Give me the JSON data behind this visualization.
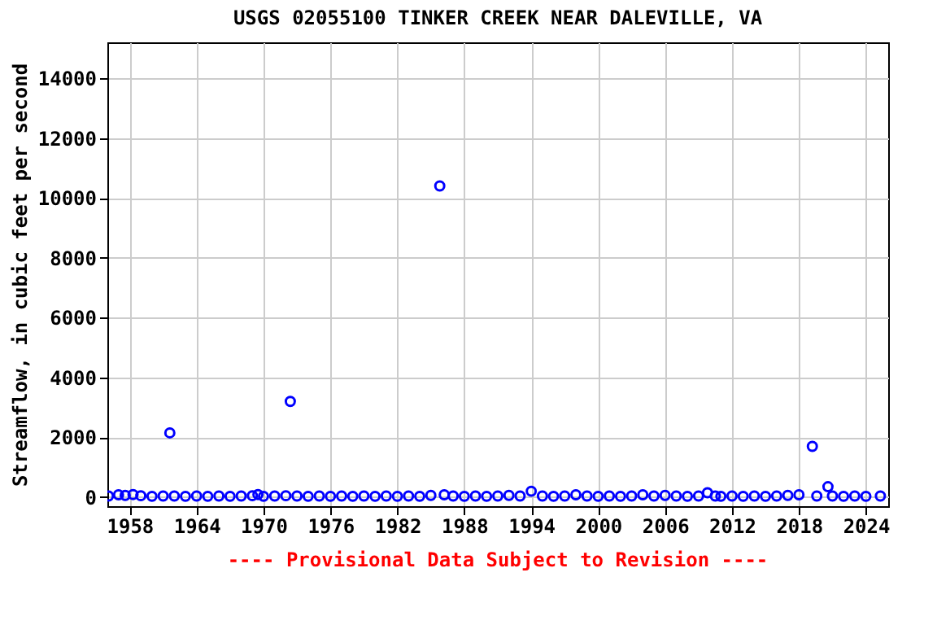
{
  "chart_data": {
    "type": "scatter",
    "title": "USGS 02055100 TINKER CREEK NEAR DALEVILLE, VA",
    "ylabel": "Streamflow, in cubic feet per second",
    "x": [
      1956.1,
      1957,
      1957.6,
      1958.3,
      1959,
      1960,
      1961,
      1961.6,
      1962,
      1963,
      1964,
      1965,
      1966,
      1967,
      1968,
      1969,
      1969.5,
      1970,
      1971,
      1972,
      1972.4,
      1973,
      1974,
      1975,
      1976,
      1977,
      1978,
      1979,
      1980,
      1981,
      1982,
      1983,
      1984,
      1985,
      1985.8,
      1986.2,
      1987,
      1988,
      1989,
      1990,
      1991,
      1992,
      1993,
      1994,
      1995,
      1996,
      1997,
      1998,
      1999,
      2000,
      2001,
      2002,
      2003,
      2004,
      2005,
      2006,
      2007,
      2008,
      2009,
      2009.8,
      2010.5,
      2011,
      2012,
      2013,
      2014,
      2015,
      2016,
      2017,
      2018,
      2019.2,
      2019.6,
      2020.6,
      2021,
      2022,
      2023,
      2024,
      2025.3
    ],
    "series": [
      {
        "color": "#0000ff",
        "values": [
          40,
          80,
          60,
          90,
          50,
          30,
          40,
          2150,
          40,
          30,
          40,
          30,
          40,
          30,
          40,
          50,
          90,
          30,
          40,
          50,
          3200,
          40,
          30,
          40,
          30,
          40,
          30,
          40,
          30,
          40,
          30,
          40,
          30,
          60,
          10400,
          80,
          40,
          30,
          40,
          30,
          40,
          60,
          40,
          200,
          40,
          30,
          40,
          80,
          40,
          30,
          40,
          30,
          40,
          80,
          40,
          60,
          40,
          30,
          40,
          150,
          40,
          30,
          40,
          30,
          40,
          30,
          40,
          60,
          80,
          1700,
          40,
          350,
          40,
          30,
          40,
          30,
          40
        ]
      }
    ],
    "xlim": [
      1956,
      2026
    ],
    "xticks": [
      1958,
      1964,
      1970,
      1976,
      1982,
      1988,
      1994,
      2000,
      2006,
      2012,
      2018,
      2024
    ],
    "ylim": [
      -300,
      15200
    ],
    "yticks": [
      0,
      2000,
      4000,
      6000,
      8000,
      10000,
      12000,
      14000
    ],
    "grid": true,
    "marker": "circle",
    "annotations": [
      "---- Provisional Data Subject to Revision ----"
    ]
  }
}
